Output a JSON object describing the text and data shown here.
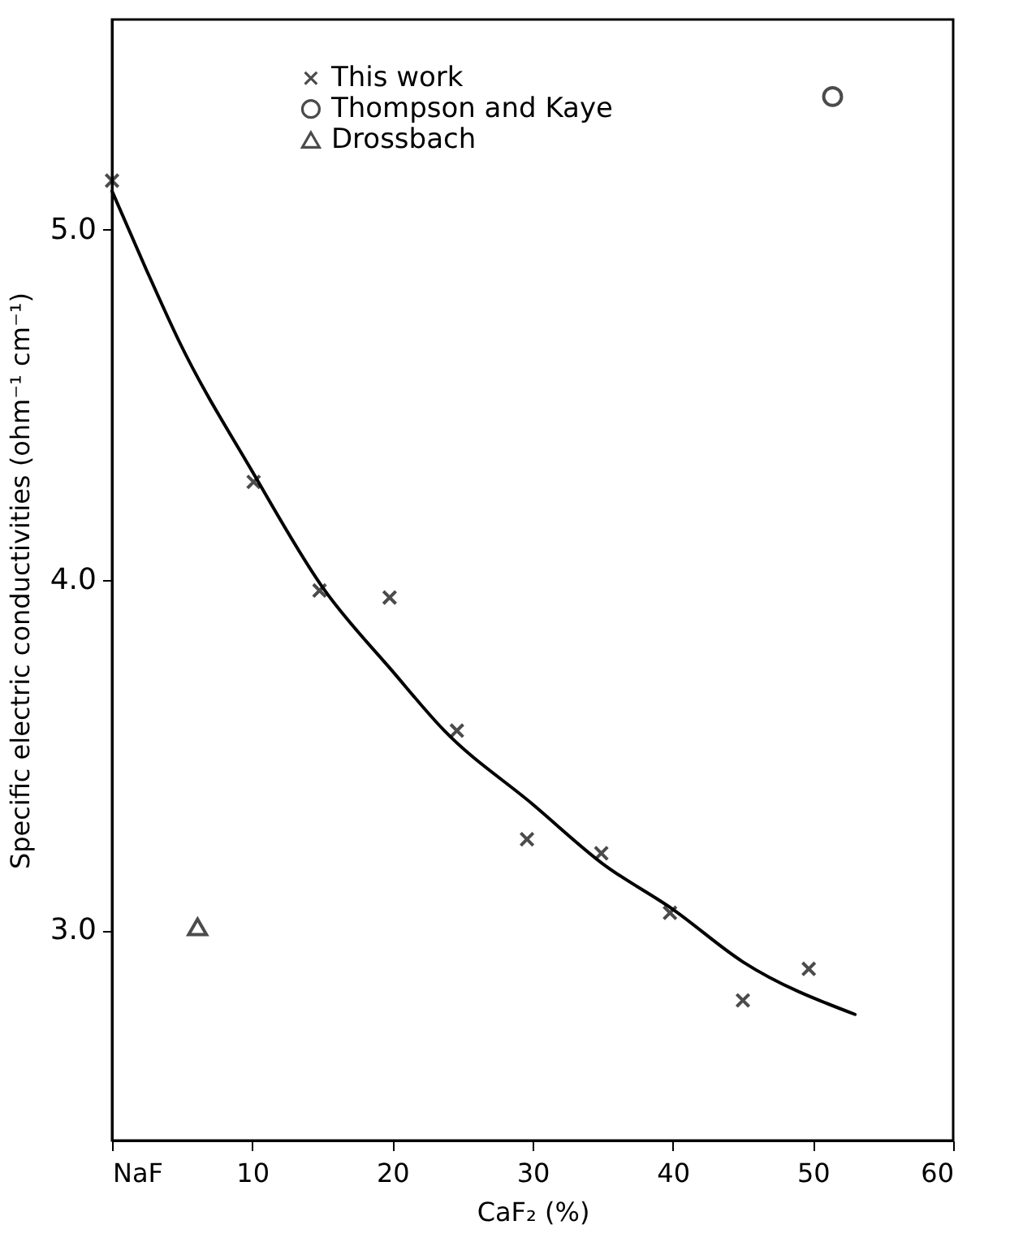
{
  "chart_data": {
    "type": "scatter",
    "xlabel": "CaF₂ (%)",
    "ylabel": "Specific electric conductivities (ohm⁻¹ cm⁻¹)",
    "xlim": [
      0,
      60
    ],
    "xticks": [
      {
        "value": 0,
        "label": "NaF"
      },
      10,
      20,
      30,
      40,
      50,
      60
    ],
    "ylim": [
      2.4,
      5.6
    ],
    "yticks": [
      {
        "value": 3,
        "label": "3.0"
      },
      {
        "value": 4,
        "label": "4.0"
      },
      {
        "value": 5,
        "label": "5.0"
      }
    ],
    "grid": false,
    "legend": "top",
    "series": [
      {
        "type": "line",
        "color": "#000000",
        "marker": "none",
        "line_style": "solid",
        "x": [
          0,
          2.4,
          4.8,
          10,
          15,
          20,
          23.7,
          30,
          35,
          40,
          45,
          53
        ],
        "values": [
          5.11,
          4.89,
          4.68,
          4.31,
          3.98,
          3.74,
          3.57,
          3.36,
          3.19,
          3.06,
          2.91,
          2.76
        ]
      },
      {
        "name": "This work",
        "color": "#000000",
        "marker": "cross",
        "x": [
          0,
          10.1,
          14.8,
          19.8,
          24.6,
          29.6,
          34.9,
          39.8,
          45.0,
          49.7
        ],
        "values": [
          5.14,
          4.28,
          3.97,
          3.95,
          3.57,
          3.26,
          3.22,
          3.05,
          2.8,
          2.89
        ]
      },
      {
        "name": "Thompson and Kaye",
        "color": "#000000",
        "marker": "circle",
        "x": [
          51.4
        ],
        "values": [
          5.38
        ]
      },
      {
        "name": "Drossbach",
        "color": "#000000",
        "marker": "triangle",
        "x": [
          6.1
        ],
        "values": [
          3.01
        ]
      }
    ]
  }
}
